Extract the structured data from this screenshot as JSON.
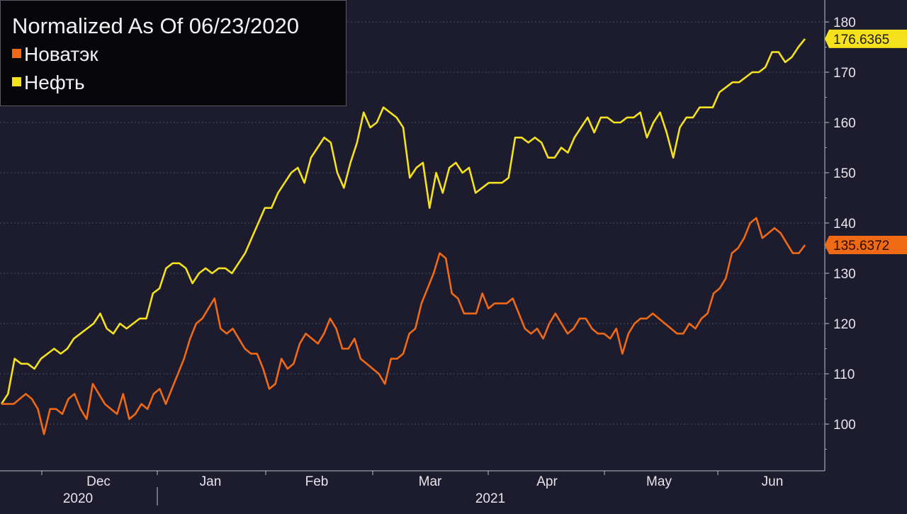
{
  "chart_data": {
    "type": "line",
    "title": "Normalized As Of 06/23/2020",
    "ylim": [
      90,
      182
    ],
    "y_ticks": [
      100,
      110,
      120,
      130,
      140,
      150,
      160,
      170,
      180
    ],
    "grid": true,
    "legend_position": "top-left",
    "x_month_labels": [
      "Dec",
      "Jan",
      "Feb",
      "Mar",
      "Apr",
      "May",
      "Jun"
    ],
    "x_year_labels": [
      "2020",
      "2021"
    ],
    "series": [
      {
        "name": "Нефть",
        "color": "#f5e11c",
        "last_value_label": "176.6365",
        "values": [
          104,
          106,
          113,
          112,
          112,
          111,
          113,
          114,
          115,
          114,
          115,
          117,
          118,
          119,
          120,
          122,
          119,
          118,
          120,
          119,
          120,
          121,
          121,
          126,
          127,
          131,
          132,
          132,
          131,
          128,
          130,
          131,
          130,
          131,
          131,
          130,
          132,
          134,
          137,
          140,
          143,
          143,
          146,
          148,
          150,
          151,
          148,
          153,
          155,
          157,
          156,
          150,
          147,
          152,
          156,
          162,
          159,
          160,
          163,
          162,
          161,
          159,
          149,
          151,
          152,
          143,
          150,
          146,
          151,
          152,
          150,
          151,
          146,
          147,
          148,
          148,
          148,
          149,
          157,
          157,
          156,
          157,
          156,
          153,
          153,
          155,
          154,
          157,
          159,
          161,
          158,
          161,
          161,
          160,
          160,
          161,
          161,
          162,
          157,
          160,
          162,
          158,
          153,
          159,
          161,
          161,
          163,
          163,
          163,
          166,
          167,
          168,
          168,
          169,
          170,
          170,
          171,
          174,
          174,
          172,
          173,
          175,
          176.6365
        ]
      },
      {
        "name": "Новатэк",
        "color": "#f06a16",
        "last_value_label": "135.6372",
        "values": [
          104,
          104,
          104,
          105,
          106,
          105,
          103,
          98,
          103,
          103,
          102,
          105,
          106,
          103,
          101,
          108,
          106,
          104,
          103,
          102,
          106,
          101,
          102,
          104,
          103,
          106,
          107,
          104,
          107,
          110,
          113,
          117,
          120,
          121,
          123,
          125,
          119,
          118,
          119,
          117,
          115,
          114,
          114,
          111,
          107,
          108,
          113,
          111,
          112,
          116,
          118,
          117,
          116,
          118,
          121,
          119,
          115,
          115,
          117,
          113,
          112,
          111,
          110,
          108,
          113,
          113,
          114,
          118,
          119,
          124,
          127,
          130,
          134,
          133,
          126,
          125,
          122,
          122,
          122,
          126,
          123,
          124,
          124,
          124,
          125,
          122,
          119,
          118,
          119,
          117,
          120,
          122,
          120,
          118,
          119,
          121,
          121,
          119,
          118,
          118,
          117,
          119,
          114,
          118,
          120,
          121,
          121,
          122,
          121,
          120,
          119,
          118,
          118,
          120,
          119,
          121,
          122,
          126,
          127,
          129,
          134,
          135,
          137,
          140,
          141,
          137,
          138,
          139,
          138,
          136,
          134,
          134,
          135.6372
        ]
      }
    ]
  }
}
